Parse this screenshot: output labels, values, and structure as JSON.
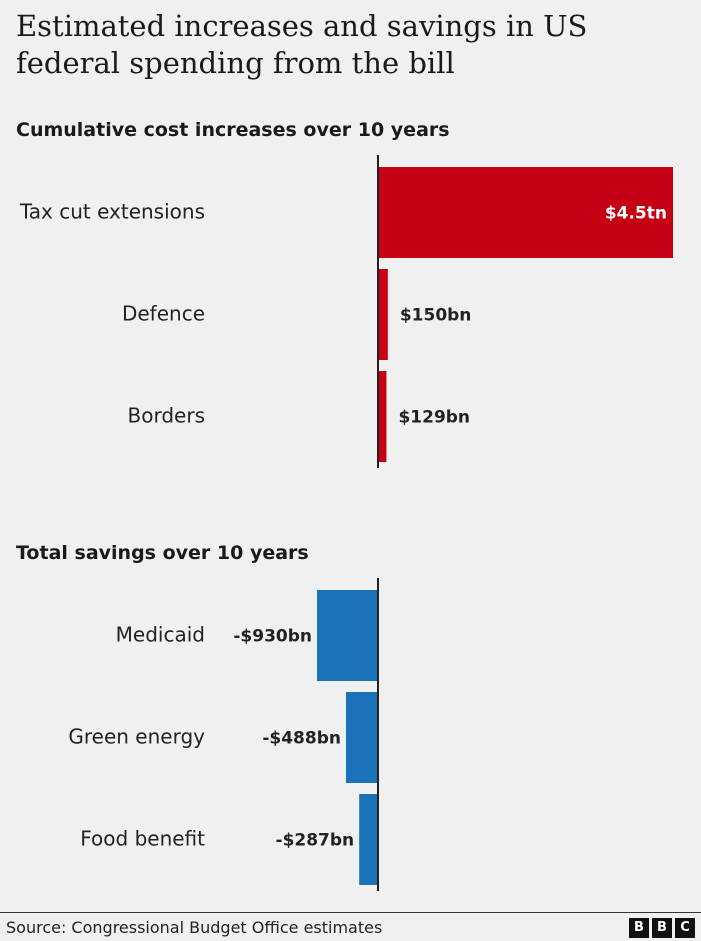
{
  "title": "Estimated increases and savings in US federal spending from the bill",
  "chart_data": [
    {
      "type": "bar",
      "orientation": "horizontal",
      "title": "Cumulative cost increases over 10 years",
      "categories": [
        "Tax cut extensions",
        "Defence",
        "Borders"
      ],
      "values": [
        4500,
        150,
        129
      ],
      "value_labels": [
        "$4.5tn",
        "$150bn",
        "$129bn"
      ],
      "units": "$bn",
      "color": "#c50012",
      "xlim": [
        0,
        4500
      ]
    },
    {
      "type": "bar",
      "orientation": "horizontal",
      "title": "Total savings over 10 years",
      "categories": [
        "Medicaid",
        "Green energy",
        "Food benefit"
      ],
      "values": [
        -930,
        -488,
        -287
      ],
      "value_labels": [
        "-$930bn",
        "-$488bn",
        "-$287bn"
      ],
      "units": "$bn",
      "color": "#1a73b8",
      "xlim": [
        -4500,
        0
      ]
    }
  ],
  "footer": {
    "source": "Source: Congressional Budget Office estimates",
    "logo_letters": [
      "B",
      "B",
      "C"
    ]
  }
}
